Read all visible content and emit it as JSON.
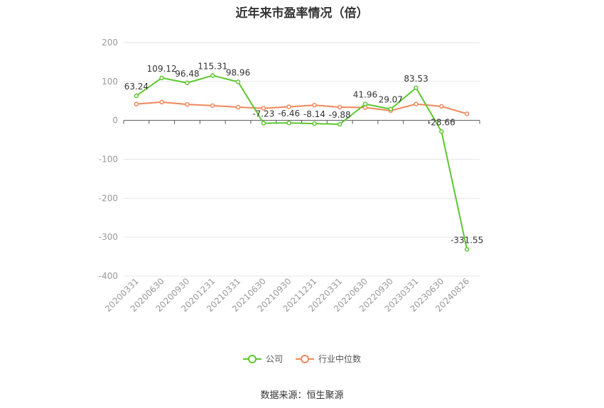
{
  "chart_data": {
    "type": "line",
    "title": "近年来市盈率情况（倍）",
    "categories": [
      "20200331",
      "20200630",
      "20200930",
      "20201231",
      "20210331",
      "20210630",
      "20210930",
      "20211231",
      "20220331",
      "20220630",
      "20220930",
      "20230331",
      "20230630",
      "20240826"
    ],
    "series": [
      {
        "name": "公司",
        "color": "#5dc72e",
        "values": [
          63.24,
          109.12,
          96.48,
          115.31,
          98.96,
          -7.23,
          -6.46,
          -8.14,
          -9.88,
          41.96,
          29.07,
          83.53,
          -28.66,
          -331.55
        ],
        "labels": [
          "63.24",
          "109.12",
          "96.48",
          "115.31",
          "98.96",
          "-7.23",
          "-6.46",
          "-8.14",
          "-9.88",
          "41.96",
          "29.07",
          "83.53",
          "-28.66",
          "-331.55"
        ]
      },
      {
        "name": "行业中位数",
        "color": "#f0885a",
        "values": [
          42,
          47,
          41,
          38,
          34,
          31,
          35,
          39,
          34,
          33,
          25,
          42,
          36,
          17
        ]
      }
    ],
    "ylim": [
      -400,
      200
    ],
    "yticks": [
      "200",
      "100",
      "0",
      "-100",
      "-200",
      "-300",
      "-400"
    ],
    "grid": true,
    "legend_position": "bottom"
  },
  "source_note": "数据来源：恒生聚源"
}
